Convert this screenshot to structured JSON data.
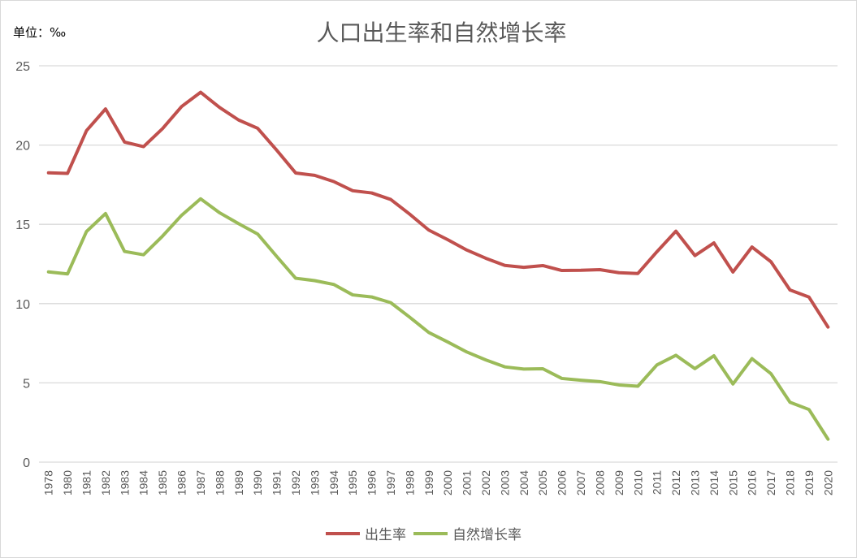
{
  "chart_data": {
    "type": "line",
    "title": "人口出生率和自然增长率",
    "unit_label": "单位：‰",
    "categories": [
      "1978",
      "1980",
      "1981",
      "1982",
      "1983",
      "1984",
      "1985",
      "1986",
      "1987",
      "1988",
      "1989",
      "1990",
      "1991",
      "1992",
      "1993",
      "1994",
      "1995",
      "1996",
      "1997",
      "1998",
      "1999",
      "2000",
      "2001",
      "2002",
      "2003",
      "2004",
      "2005",
      "2006",
      "2007",
      "2008",
      "2009",
      "2010",
      "2011",
      "2012",
      "2013",
      "2014",
      "2015",
      "2016",
      "2017",
      "2018",
      "2019",
      "2020"
    ],
    "series": [
      {
        "name": "出生率",
        "color": "#c0504d",
        "values": [
          18.25,
          18.21,
          20.91,
          22.28,
          20.19,
          19.9,
          21.04,
          22.43,
          23.33,
          22.37,
          21.58,
          21.06,
          19.68,
          18.24,
          18.09,
          17.7,
          17.12,
          16.98,
          16.57,
          15.64,
          14.64,
          14.03,
          13.38,
          12.86,
          12.41,
          12.29,
          12.4,
          12.09,
          12.1,
          12.14,
          11.95,
          11.9,
          13.27,
          14.57,
          13.03,
          13.83,
          11.99,
          13.57,
          12.64,
          10.86,
          10.41,
          8.52
        ]
      },
      {
        "name": "自然增长率",
        "color": "#9bbb59",
        "values": [
          12.0,
          11.87,
          14.55,
          15.68,
          13.29,
          13.08,
          14.26,
          15.57,
          16.61,
          15.73,
          15.04,
          14.39,
          12.98,
          11.6,
          11.45,
          11.21,
          10.55,
          10.42,
          10.06,
          9.14,
          8.18,
          7.58,
          6.95,
          6.45,
          6.01,
          5.87,
          5.89,
          5.28,
          5.17,
          5.08,
          4.87,
          4.79,
          6.13,
          6.74,
          5.9,
          6.71,
          4.93,
          6.53,
          5.58,
          3.78,
          3.32,
          1.45
        ]
      }
    ],
    "ylim": [
      0,
      25
    ],
    "yticks": [
      "0",
      "5",
      "10",
      "15",
      "20",
      "25"
    ],
    "grid": true,
    "legend_position": "bottom"
  }
}
